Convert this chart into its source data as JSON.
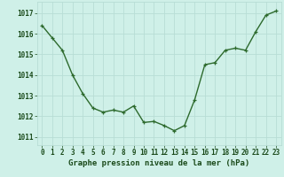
{
  "x": [
    0,
    1,
    2,
    3,
    4,
    5,
    6,
    7,
    8,
    9,
    10,
    11,
    12,
    13,
    14,
    15,
    16,
    17,
    18,
    19,
    20,
    21,
    22,
    23
  ],
  "y": [
    1016.4,
    1015.8,
    1015.2,
    1014.0,
    1013.1,
    1012.4,
    1012.2,
    1012.3,
    1012.2,
    1012.5,
    1011.7,
    1011.75,
    1011.55,
    1011.3,
    1011.55,
    1012.8,
    1014.5,
    1014.6,
    1015.2,
    1015.3,
    1015.2,
    1016.1,
    1016.9,
    1017.1
  ],
  "line_color": "#2d6a2d",
  "marker": "+",
  "marker_color": "#2d6a2d",
  "bg_color": "#cff0e8",
  "grid_color": "#b8ddd5",
  "xlabel": "Graphe pression niveau de la mer (hPa)",
  "xlabel_color": "#1a4a1a",
  "ytick_labels": [
    1011,
    1012,
    1013,
    1014,
    1015,
    1016,
    1017
  ],
  "ylim": [
    1010.6,
    1017.55
  ],
  "xlim": [
    -0.5,
    23.5
  ],
  "xtick_labels": [
    "0",
    "1",
    "2",
    "3",
    "4",
    "5",
    "6",
    "7",
    "8",
    "9",
    "10",
    "11",
    "12",
    "13",
    "14",
    "15",
    "16",
    "17",
    "18",
    "19",
    "20",
    "21",
    "22",
    "23"
  ],
  "tick_color": "#1a4a1a",
  "label_fontsize": 6.5,
  "tick_fontsize": 5.5,
  "linewidth": 1.0,
  "markersize": 3.5
}
